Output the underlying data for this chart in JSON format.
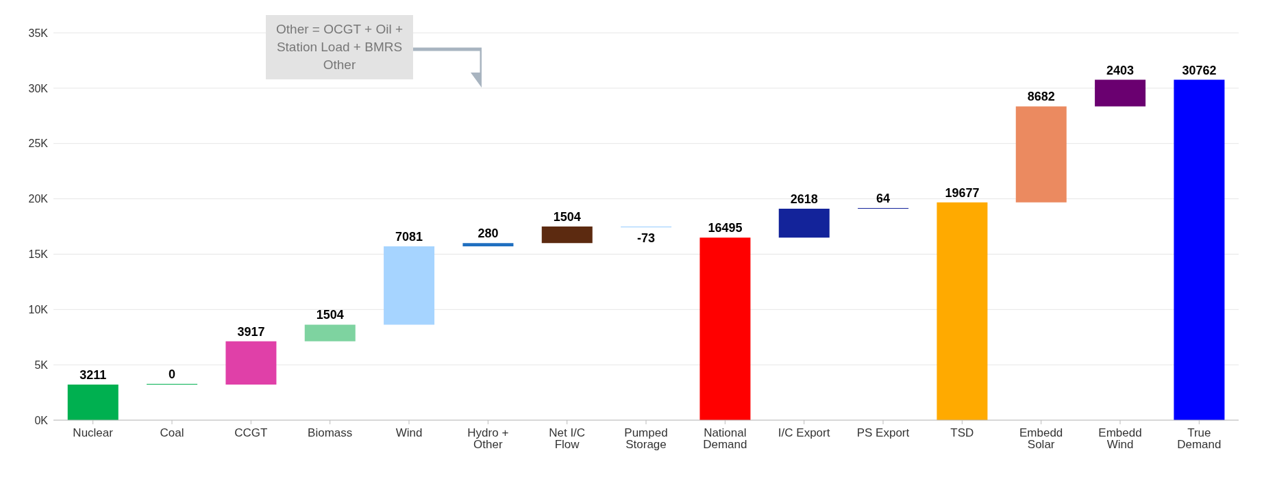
{
  "chart_data": {
    "type": "bar",
    "categories": [
      "Nuclear",
      "Coal",
      "CCGT",
      "Biomass",
      "Wind",
      "Hydro + Other",
      "Net I/C Flow",
      "Pumped Storage",
      "National Demand",
      "I/C Export",
      "PS Export",
      "TSD",
      "Embedd Solar",
      "Embedd Wind",
      "True Demand"
    ],
    "values": [
      3211,
      0,
      3917,
      1504,
      7081,
      280,
      1504,
      -73,
      16495,
      2618,
      64,
      19677,
      8682,
      2403,
      30762
    ],
    "base": [
      0,
      3211,
      3211,
      7128,
      8632,
      15713,
      15993,
      17497,
      0,
      16495,
      19113,
      0,
      19677,
      28359,
      0
    ],
    "colors": [
      "#00b050",
      "#00b050",
      "#e040a8",
      "#7ed3a0",
      "#a6d4ff",
      "#1f6fc0",
      "#5c2a10",
      "#a6d4ff",
      "#ff0000",
      "#13239a",
      "#13239a",
      "#ffaa00",
      "#eb8a60",
      "#6a0070",
      "#0000ff"
    ],
    "ylim": [
      0,
      35000
    ],
    "yticks": [
      {
        "value": 0,
        "label": "0K"
      },
      {
        "value": 5000,
        "label": "5K"
      },
      {
        "value": 10000,
        "label": "10K"
      },
      {
        "value": 15000,
        "label": "15K"
      },
      {
        "value": 20000,
        "label": "20K"
      },
      {
        "value": 25000,
        "label": "25K"
      },
      {
        "value": 30000,
        "label": "30K"
      },
      {
        "value": 35000,
        "label": "35K"
      }
    ],
    "grid": "y",
    "data_labels": true,
    "annotations": [
      "Other = OCGT + Oil + Station Load + BMRS Other"
    ]
  }
}
